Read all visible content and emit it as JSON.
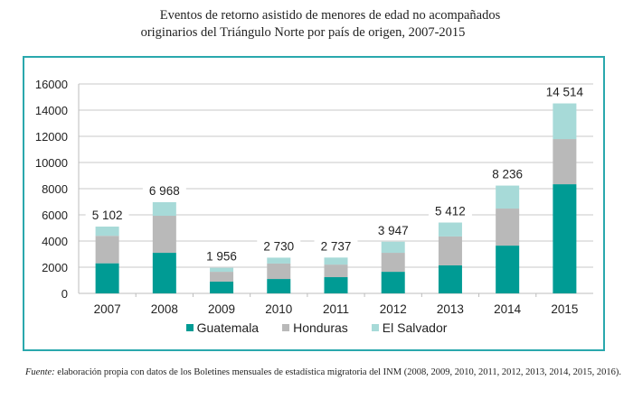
{
  "chart_data": {
    "type": "bar",
    "stacked": true,
    "title": "Eventos de retorno asistido de menores de edad no acompañados originarios del Triángulo Norte por país de origen, 2007-2015",
    "title_lines": [
      "Eventos de retorno asistido de menores de edad no acompañados",
      "originarios del Triángulo Norte por país de origen, 2007-2015"
    ],
    "xlabel": "",
    "ylabel": "",
    "ylim": [
      0,
      16000
    ],
    "yticks": [
      0,
      2000,
      4000,
      6000,
      8000,
      10000,
      12000,
      14000,
      16000
    ],
    "ytick_labels": [
      "0",
      "2000",
      "4000",
      "6000",
      "8000",
      "10000",
      "12000",
      "14000",
      "16000"
    ],
    "grid": true,
    "legend_position": "bottom-center",
    "categories": [
      "2007",
      "2008",
      "2009",
      "2010",
      "2011",
      "2012",
      "2013",
      "2014",
      "2015"
    ],
    "series": [
      {
        "name": "Guatemala",
        "color": "#009b94",
        "values": [
          2300,
          3100,
          900,
          1100,
          1240,
          1650,
          2140,
          3650,
          8340
        ]
      },
      {
        "name": "Honduras",
        "color": "#b9b9b9",
        "values": [
          2100,
          2830,
          750,
          1180,
          960,
          1450,
          2210,
          2830,
          3450
        ]
      },
      {
        "name": "El Salvador",
        "color": "#a7dad8",
        "values": [
          702,
          1038,
          306,
          450,
          537,
          847,
          1062,
          1756,
          2724
        ]
      }
    ],
    "totals": [
      5102,
      6968,
      1956,
      2730,
      2737,
      3947,
      5412,
      8236,
      14514
    ],
    "total_labels": [
      "5 102",
      "6 968",
      "1 956",
      "2 730",
      "2 737",
      "3 947",
      "5 412",
      "8 236",
      "14 514"
    ]
  },
  "footnote": {
    "source_label": "Fuente:",
    "text": " elaboración propia con datos de los Boletines mensuales de estadística migratoria del INM (2008, 2009, 2010, 2011, 2012, 2013, 2014, 2015, 2016)."
  },
  "colors": {
    "frame": "#2aa8ad",
    "grid": "#c8c8c8"
  }
}
